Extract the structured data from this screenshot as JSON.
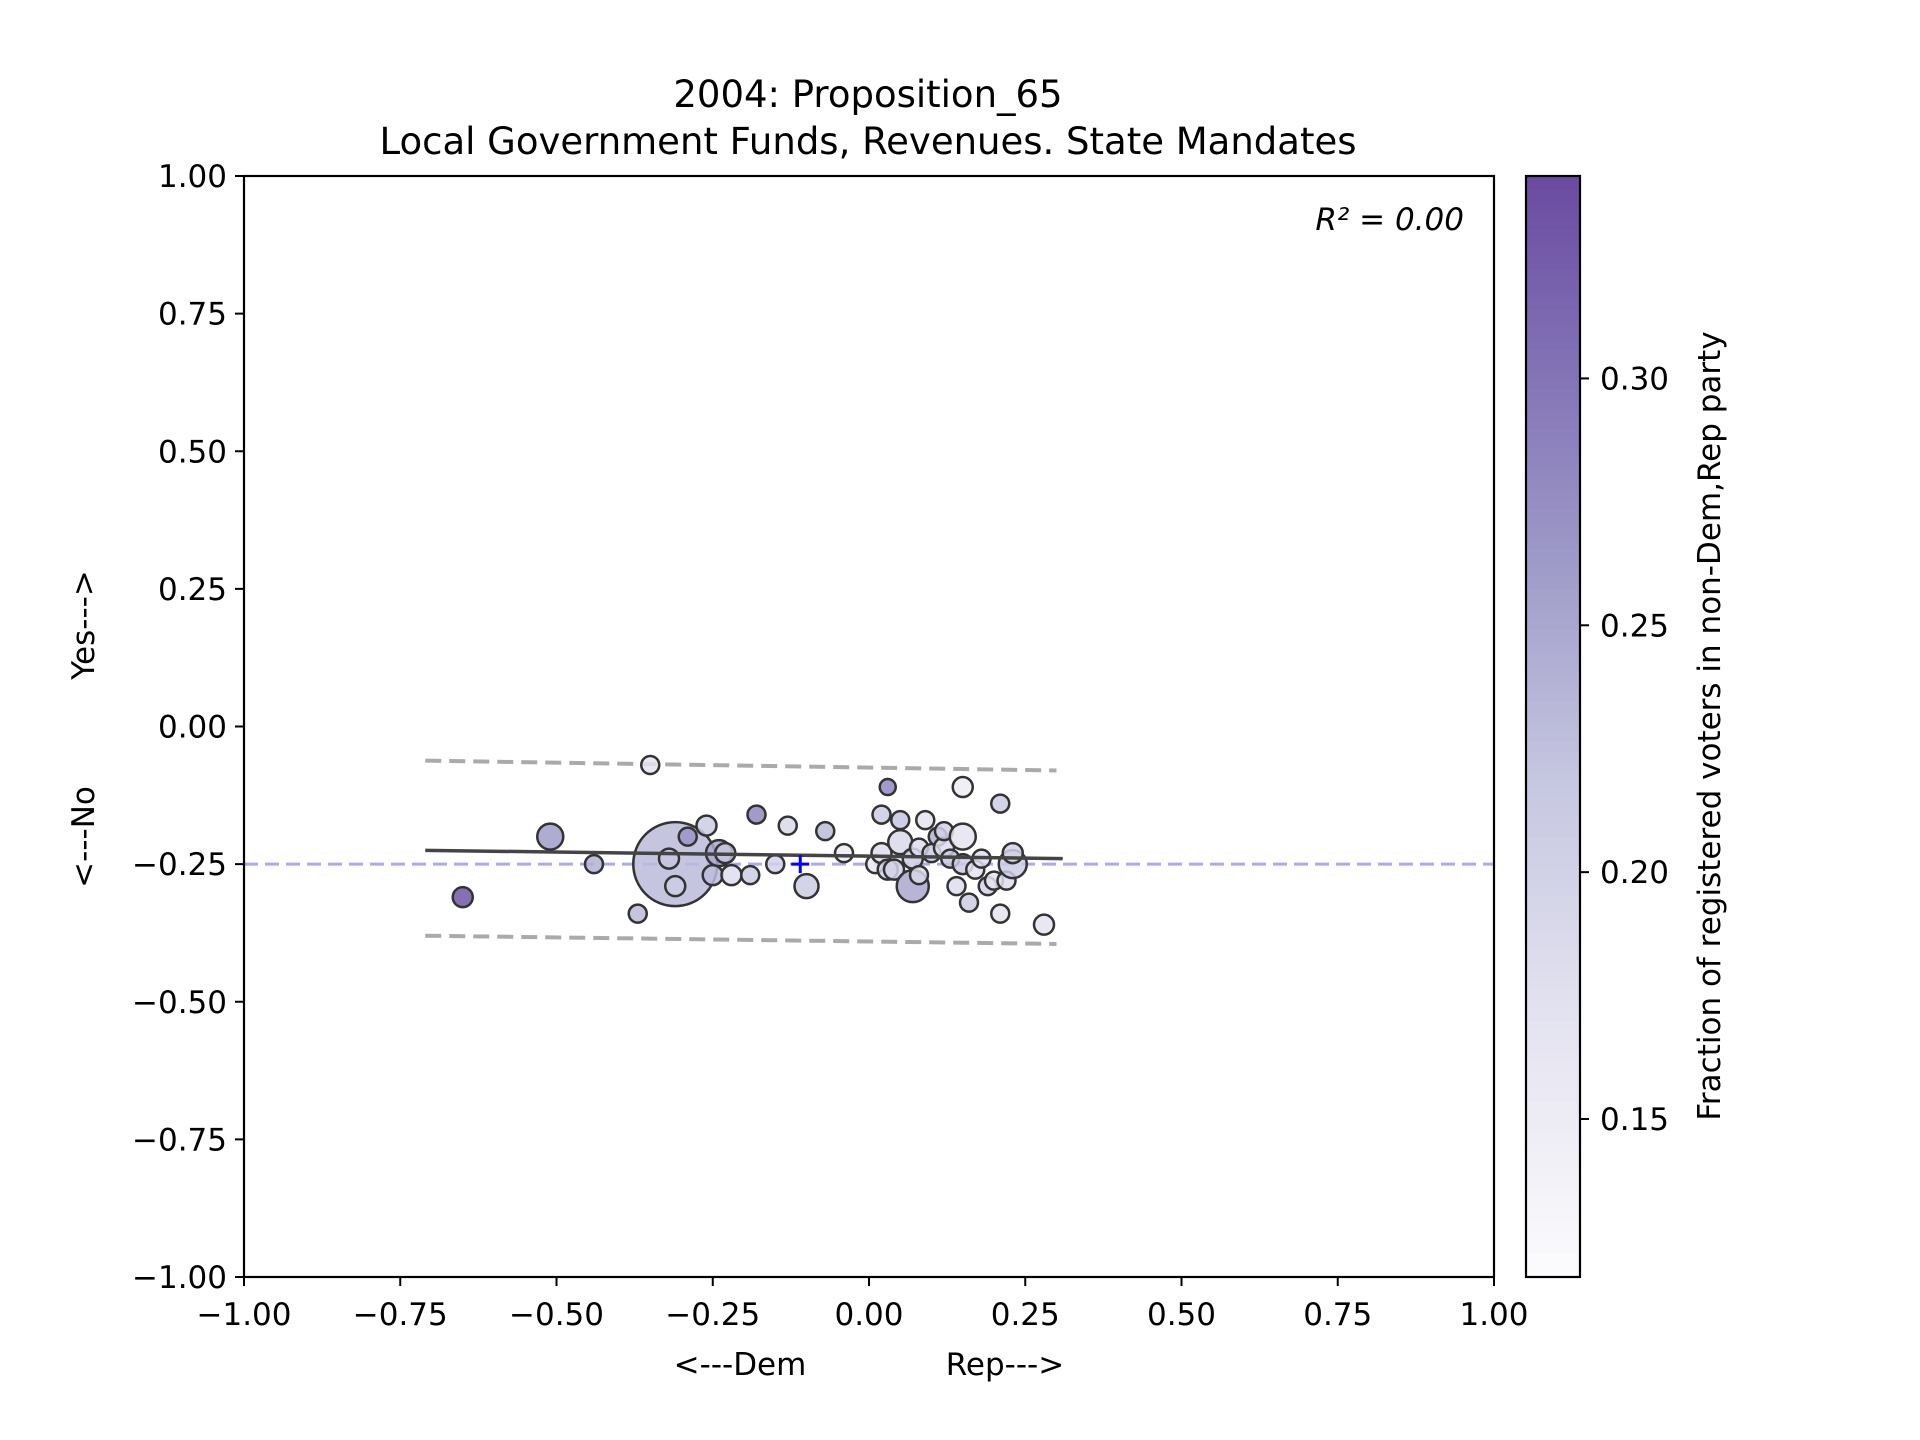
{
  "chart_data": {
    "type": "scatter",
    "title": "2004: Proposition_65",
    "subtitle": "Local Government Funds, Revenues. State Mandates",
    "xlabel_left": "<---Dem",
    "xlabel_right": "Rep--->",
    "ylabel_bottom": "<---No",
    "ylabel_top": "Yes--->",
    "annotation": "R² = 0.00",
    "xlim": [
      -1.0,
      1.0
    ],
    "ylim": [
      -1.0,
      1.0
    ],
    "x_ticks": [
      "−1.00",
      "−0.75",
      "−0.50",
      "−0.25",
      "0.00",
      "0.25",
      "0.50",
      "0.75",
      "1.00"
    ],
    "y_ticks": [
      "−1.00",
      "−0.75",
      "−0.50",
      "−0.25",
      "0.00",
      "0.25",
      "0.50",
      "0.75",
      "1.00"
    ],
    "colorbar": {
      "label": "Fraction of registered voters in non-Dem,Rep party",
      "range": [
        0.118,
        0.341
      ],
      "ticks": [
        "0.15",
        "0.20",
        "0.25",
        "0.30"
      ],
      "colormap": "Purples"
    },
    "reference_line": {
      "y": -0.25,
      "color": "#aaaaee",
      "style": "dashed"
    },
    "mean_marker": {
      "x": -0.11,
      "y": -0.25,
      "color": "#0000ff",
      "symbol": "+"
    },
    "fit_line": {
      "x": [
        -0.71,
        0.31
      ],
      "y": [
        -0.225,
        -0.24
      ],
      "color": "#444444"
    },
    "confidence_band": {
      "upper": {
        "x": [
          -0.71,
          0.3
        ],
        "y": [
          -0.062,
          -0.08
        ]
      },
      "lower": {
        "x": [
          -0.71,
          0.3
        ],
        "y": [
          -0.38,
          -0.395
        ]
      },
      "color": "#aaaaaa",
      "style": "dashed"
    },
    "grid": false,
    "points": [
      {
        "x": -0.65,
        "y": -0.31,
        "size": 10,
        "c": 0.33
      },
      {
        "x": -0.51,
        "y": -0.2,
        "size": 13,
        "c": 0.26
      },
      {
        "x": -0.44,
        "y": -0.25,
        "size": 9,
        "c": 0.24
      },
      {
        "x": -0.37,
        "y": -0.34,
        "size": 9,
        "c": 0.23
      },
      {
        "x": -0.35,
        "y": -0.07,
        "size": 9,
        "c": 0.17
      },
      {
        "x": -0.31,
        "y": -0.25,
        "size": 42,
        "c": 0.23
      },
      {
        "x": -0.32,
        "y": -0.24,
        "size": 10,
        "c": 0.22
      },
      {
        "x": -0.31,
        "y": -0.29,
        "size": 10,
        "c": 0.21
      },
      {
        "x": -0.29,
        "y": -0.2,
        "size": 9,
        "c": 0.27
      },
      {
        "x": -0.26,
        "y": -0.18,
        "size": 10,
        "c": 0.21
      },
      {
        "x": -0.25,
        "y": -0.27,
        "size": 10,
        "c": 0.23
      },
      {
        "x": -0.24,
        "y": -0.23,
        "size": 13,
        "c": 0.25
      },
      {
        "x": -0.23,
        "y": -0.23,
        "size": 10,
        "c": 0.22
      },
      {
        "x": -0.22,
        "y": -0.27,
        "size": 10,
        "c": 0.18
      },
      {
        "x": -0.19,
        "y": -0.27,
        "size": 9,
        "c": 0.21
      },
      {
        "x": -0.18,
        "y": -0.16,
        "size": 9,
        "c": 0.28
      },
      {
        "x": -0.15,
        "y": -0.25,
        "size": 9,
        "c": 0.2
      },
      {
        "x": -0.13,
        "y": -0.18,
        "size": 9,
        "c": 0.19
      },
      {
        "x": -0.1,
        "y": -0.29,
        "size": 12,
        "c": 0.21
      },
      {
        "x": -0.07,
        "y": -0.19,
        "size": 9,
        "c": 0.23
      },
      {
        "x": -0.04,
        "y": -0.23,
        "size": 9,
        "c": 0.15
      },
      {
        "x": 0.01,
        "y": -0.25,
        "size": 9,
        "c": 0.16
      },
      {
        "x": 0.02,
        "y": -0.16,
        "size": 9,
        "c": 0.21
      },
      {
        "x": 0.02,
        "y": -0.23,
        "size": 10,
        "c": 0.18
      },
      {
        "x": 0.03,
        "y": -0.11,
        "size": 8,
        "c": 0.28
      },
      {
        "x": 0.03,
        "y": -0.26,
        "size": 10,
        "c": 0.2
      },
      {
        "x": 0.04,
        "y": -0.26,
        "size": 10,
        "c": 0.2
      },
      {
        "x": 0.05,
        "y": -0.21,
        "size": 12,
        "c": 0.19
      },
      {
        "x": 0.05,
        "y": -0.17,
        "size": 9,
        "c": 0.22
      },
      {
        "x": 0.07,
        "y": -0.29,
        "size": 16,
        "c": 0.25
      },
      {
        "x": 0.07,
        "y": -0.24,
        "size": 10,
        "c": 0.21
      },
      {
        "x": 0.08,
        "y": -0.22,
        "size": 9,
        "c": 0.18
      },
      {
        "x": 0.08,
        "y": -0.27,
        "size": 9,
        "c": 0.19
      },
      {
        "x": 0.09,
        "y": -0.17,
        "size": 9,
        "c": 0.17
      },
      {
        "x": 0.1,
        "y": -0.23,
        "size": 9,
        "c": 0.21
      },
      {
        "x": 0.11,
        "y": -0.2,
        "size": 9,
        "c": 0.24
      },
      {
        "x": 0.12,
        "y": -0.22,
        "size": 10,
        "c": 0.18
      },
      {
        "x": 0.12,
        "y": -0.19,
        "size": 9,
        "c": 0.2
      },
      {
        "x": 0.13,
        "y": -0.24,
        "size": 9,
        "c": 0.22
      },
      {
        "x": 0.14,
        "y": -0.29,
        "size": 9,
        "c": 0.18
      },
      {
        "x": 0.15,
        "y": -0.25,
        "size": 10,
        "c": 0.21
      },
      {
        "x": 0.15,
        "y": -0.11,
        "size": 10,
        "c": 0.15
      },
      {
        "x": 0.15,
        "y": -0.2,
        "size": 13,
        "c": 0.17
      },
      {
        "x": 0.16,
        "y": -0.32,
        "size": 9,
        "c": 0.21
      },
      {
        "x": 0.17,
        "y": -0.26,
        "size": 9,
        "c": 0.17
      },
      {
        "x": 0.18,
        "y": -0.24,
        "size": 9,
        "c": 0.18
      },
      {
        "x": 0.19,
        "y": -0.29,
        "size": 9,
        "c": 0.2
      },
      {
        "x": 0.2,
        "y": -0.28,
        "size": 9,
        "c": 0.17
      },
      {
        "x": 0.21,
        "y": -0.14,
        "size": 9,
        "c": 0.21
      },
      {
        "x": 0.21,
        "y": -0.34,
        "size": 9,
        "c": 0.17
      },
      {
        "x": 0.22,
        "y": -0.28,
        "size": 9,
        "c": 0.18
      },
      {
        "x": 0.23,
        "y": -0.25,
        "size": 14,
        "c": 0.21
      },
      {
        "x": 0.23,
        "y": -0.23,
        "size": 10,
        "c": 0.2
      },
      {
        "x": 0.28,
        "y": -0.36,
        "size": 10,
        "c": 0.17
      }
    ]
  }
}
